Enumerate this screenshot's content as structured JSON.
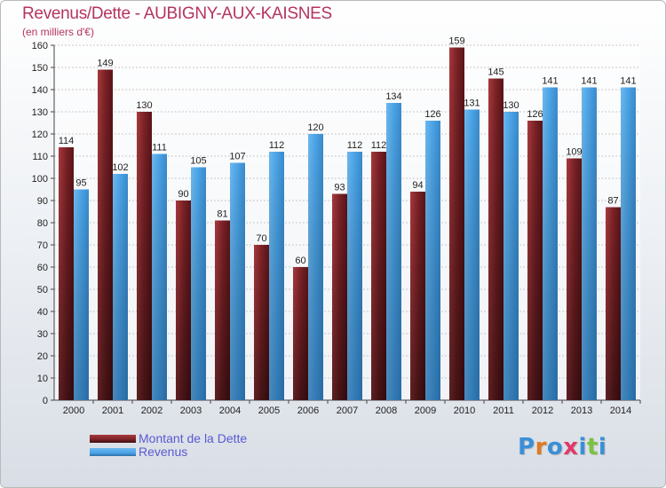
{
  "title": "Revenus/Dette - AUBIGNY-AUX-KAISNES",
  "subtitle": "(en milliers d'€)",
  "brand": {
    "name": "Proxiti",
    "letters": [
      {
        "char": "P",
        "color": "#3a8fd8"
      },
      {
        "char": "r",
        "color": "#e07a1e"
      },
      {
        "char": "o",
        "color": "#3a8fd8"
      },
      {
        "char": "x",
        "color": "#e03a6a"
      },
      {
        "char": "i",
        "color": "#3a8fd8"
      },
      {
        "char": "t",
        "color": "#7cc242"
      },
      {
        "char": "i",
        "color": "#3a8fd8"
      }
    ]
  },
  "legend": {
    "debt_label": "Montant de la Dette",
    "revenue_label": "Revenus"
  },
  "colors": {
    "debt": "#7b2226",
    "debt_light": "#a8393e",
    "revenue": "#4aa3e6",
    "revenue_light": "#6cb8ef",
    "axis_text": "#222222",
    "grid": "#c8c8c8"
  },
  "chart_data": {
    "type": "bar",
    "title": "Revenus/Dette - AUBIGNY-AUX-KAISNES",
    "ylabel": "(en milliers d'€)",
    "xlabel": "",
    "categories": [
      "2000",
      "2001",
      "2002",
      "2003",
      "2004",
      "2005",
      "2006",
      "2007",
      "2008",
      "2009",
      "2010",
      "2011",
      "2012",
      "2013",
      "2014"
    ],
    "series": [
      {
        "name": "Montant de la Dette",
        "values": [
          114,
          149,
          130,
          90,
          81,
          70,
          60,
          93,
          112,
          94,
          159,
          145,
          126,
          109,
          87
        ]
      },
      {
        "name": "Revenus",
        "values": [
          95,
          102,
          111,
          105,
          107,
          112,
          120,
          112,
          134,
          126,
          131,
          130,
          141,
          141,
          141
        ]
      }
    ],
    "ylim": [
      0,
      160
    ],
    "yticks": [
      0,
      10,
      20,
      30,
      40,
      50,
      60,
      70,
      80,
      90,
      100,
      110,
      120,
      130,
      140,
      150,
      160
    ],
    "grid": true,
    "legend_position": "bottom-left"
  }
}
